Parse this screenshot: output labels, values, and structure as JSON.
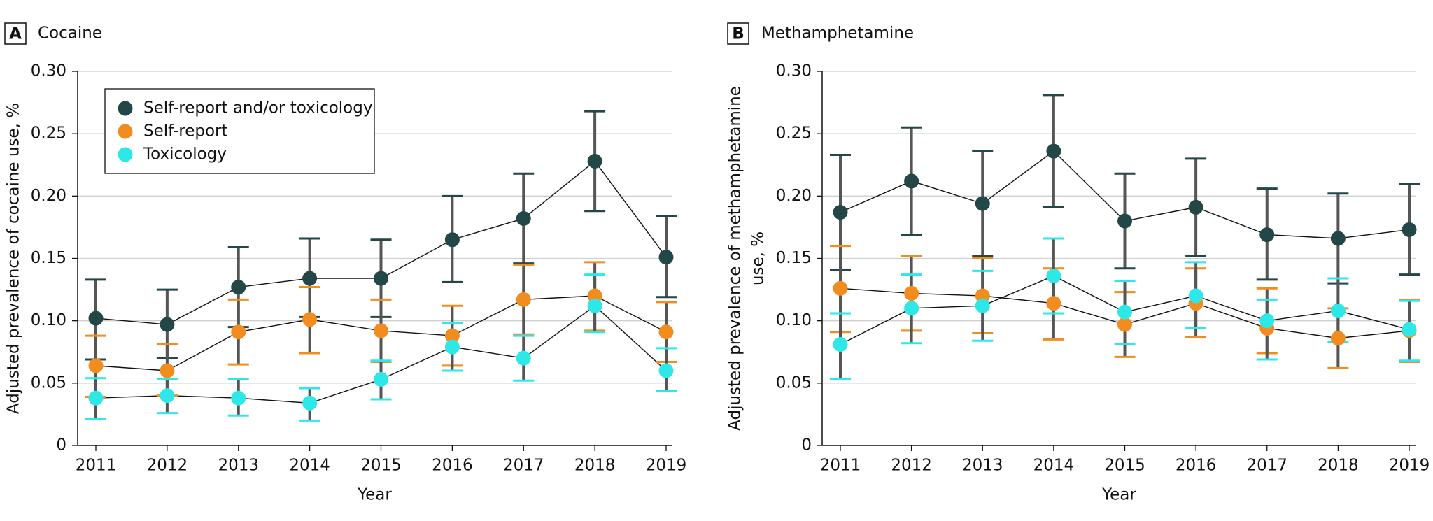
{
  "chart_data": [
    {
      "type": "line",
      "panel": "A",
      "title": "Cocaine",
      "xlabel": "Year",
      "ylabel": [
        "Adjusted prevalence of cocaine use, %"
      ],
      "categories": [
        "2011",
        "2012",
        "2013",
        "2014",
        "2015",
        "2016",
        "2017",
        "2018",
        "2019"
      ],
      "ylim": [
        0,
        0.3
      ],
      "yticks": [
        0,
        0.05,
        {
          "value": 0.1,
          "label": "0.10"
        },
        0.15,
        {
          "value": 0.2,
          "label": "0.20"
        },
        0.25,
        {
          "value": 0.3,
          "label": "0.30"
        }
      ],
      "grid": true,
      "legend": "upper left",
      "series": [
        {
          "name": "Self-report and/or toxicology",
          "color": "#234646",
          "values": [
            0.102,
            0.097,
            0.127,
            0.134,
            0.134,
            0.165,
            0.182,
            0.228,
            0.151
          ],
          "lower": [
            0.069,
            0.07,
            0.095,
            0.103,
            0.103,
            0.131,
            0.146,
            0.188,
            0.119
          ],
          "upper": [
            0.133,
            0.125,
            0.159,
            0.166,
            0.165,
            0.2,
            0.218,
            0.268,
            0.184
          ]
        },
        {
          "name": "Self-report",
          "color": "#f28c1e",
          "values": [
            0.064,
            0.06,
            0.091,
            0.101,
            0.092,
            0.088,
            0.117,
            0.12,
            0.091
          ],
          "lower": [
            0.039,
            0.04,
            0.065,
            0.074,
            0.067,
            0.064,
            0.089,
            0.092,
            0.067
          ],
          "upper": [
            0.088,
            0.081,
            0.117,
            0.127,
            0.117,
            0.112,
            0.145,
            0.147,
            0.115
          ]
        },
        {
          "name": "Toxicology",
          "color": "#2ee8e8",
          "values": [
            0.038,
            0.04,
            0.038,
            0.034,
            0.053,
            0.079,
            0.07,
            0.112,
            0.06
          ],
          "lower": [
            0.021,
            0.026,
            0.024,
            0.02,
            0.037,
            0.06,
            0.052,
            0.091,
            0.044
          ],
          "upper": [
            0.054,
            0.053,
            0.053,
            0.046,
            0.068,
            0.098,
            0.088,
            0.137,
            0.078
          ]
        }
      ]
    },
    {
      "type": "line",
      "panel": "B",
      "title": "Methamphetamine",
      "xlabel": "Year",
      "ylabel": [
        "Adjusted prevalence of methamphetamine",
        "use, %"
      ],
      "categories": [
        "2011",
        "2012",
        "2013",
        "2014",
        "2015",
        "2016",
        "2017",
        "2018",
        "2019"
      ],
      "ylim": [
        0,
        0.3
      ],
      "yticks": [
        0,
        0.05,
        {
          "value": 0.1,
          "label": "0.10"
        },
        0.15,
        {
          "value": 0.2,
          "label": "0.20"
        },
        0.25,
        {
          "value": 0.3,
          "label": "0.30"
        }
      ],
      "grid": true,
      "legend": false,
      "series": [
        {
          "color": "#234646",
          "values": [
            0.187,
            0.212,
            0.194,
            0.236,
            0.18,
            0.191,
            0.169,
            0.166,
            0.173
          ],
          "lower": [
            0.141,
            0.169,
            0.152,
            0.191,
            0.142,
            0.152,
            0.133,
            0.13,
            0.137
          ],
          "upper": [
            0.233,
            0.255,
            0.236,
            0.281,
            0.218,
            0.23,
            0.206,
            0.202,
            0.21
          ]
        },
        {
          "color": "#f28c1e",
          "values": [
            0.126,
            0.122,
            0.12,
            0.114,
            0.097,
            0.114,
            0.094,
            0.086,
            0.092
          ],
          "lower": [
            0.091,
            0.092,
            0.09,
            0.085,
            0.071,
            0.087,
            0.074,
            0.062,
            0.067
          ],
          "upper": [
            0.16,
            0.152,
            0.15,
            0.142,
            0.123,
            0.142,
            0.126,
            0.11,
            0.117
          ]
        },
        {
          "color": "#2ee8e8",
          "values": [
            0.081,
            0.11,
            0.112,
            0.136,
            0.107,
            0.12,
            0.1,
            0.108,
            0.093
          ],
          "lower": [
            0.053,
            0.082,
            0.084,
            0.106,
            0.081,
            0.094,
            0.069,
            0.083,
            0.068
          ],
          "upper": [
            0.106,
            0.137,
            0.14,
            0.166,
            0.132,
            0.147,
            0.117,
            0.134,
            0.116
          ]
        }
      ]
    }
  ]
}
